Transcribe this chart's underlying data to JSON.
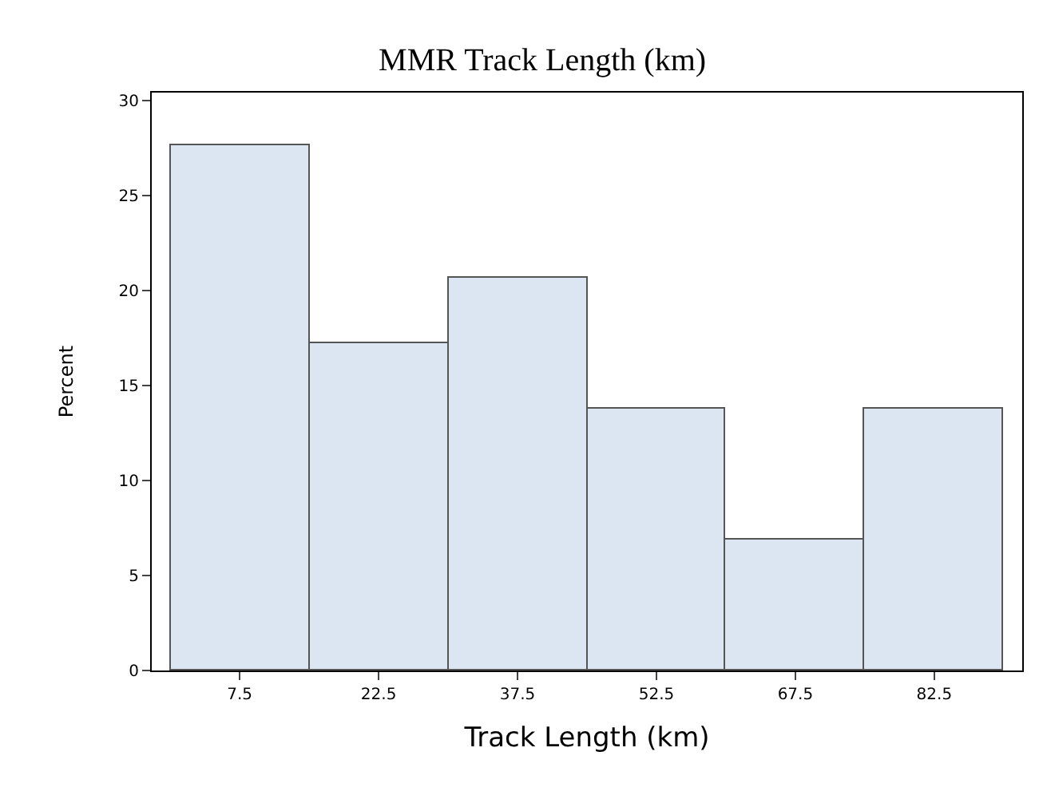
{
  "chart_data": {
    "type": "histogram",
    "title": "MMR Track Length (km)",
    "xlabel": "Track Length (km)",
    "ylabel": "Percent",
    "bins": [
      0,
      15,
      30,
      45,
      60,
      75,
      90
    ],
    "values": [
      27.6,
      17.2,
      20.7,
      13.8,
      6.9,
      13.8
    ],
    "color": "#dce6f2",
    "xlim": [
      -2,
      92
    ],
    "xticks": [
      7.5,
      22.5,
      37.5,
      52.5,
      67.5,
      82.5
    ],
    "ylim": [
      0,
      30.4
    ],
    "yticks": [
      0,
      5,
      10,
      15,
      20,
      25,
      30
    ]
  }
}
